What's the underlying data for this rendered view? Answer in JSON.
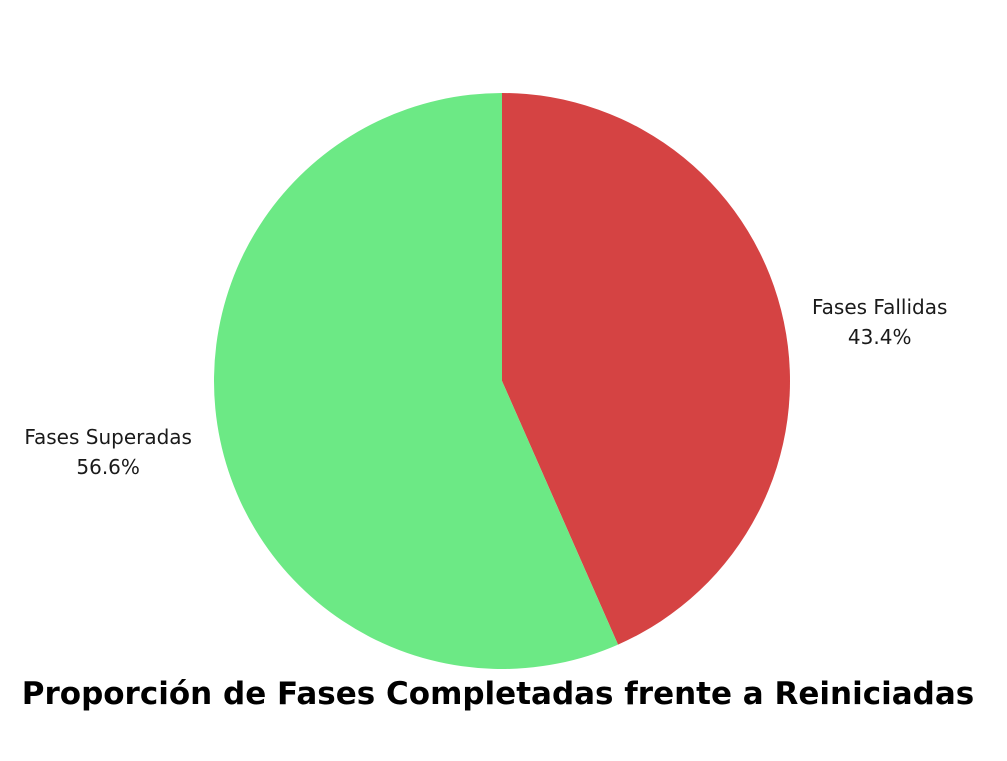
{
  "chart_data": {
    "type": "pie",
    "title": "Proporción de Fases Completadas frente a Reiniciadas",
    "slices": [
      {
        "label": "Fases Fallidas",
        "value": 43.4,
        "percent_label": "43.4%",
        "color": "#d54343"
      },
      {
        "label": "Fases Superadas",
        "value": 56.6,
        "percent_label": "56.6%",
        "color": "#6ce985"
      }
    ],
    "start_angle": "12 o'clock",
    "direction": "clockwise",
    "legend": "none"
  }
}
